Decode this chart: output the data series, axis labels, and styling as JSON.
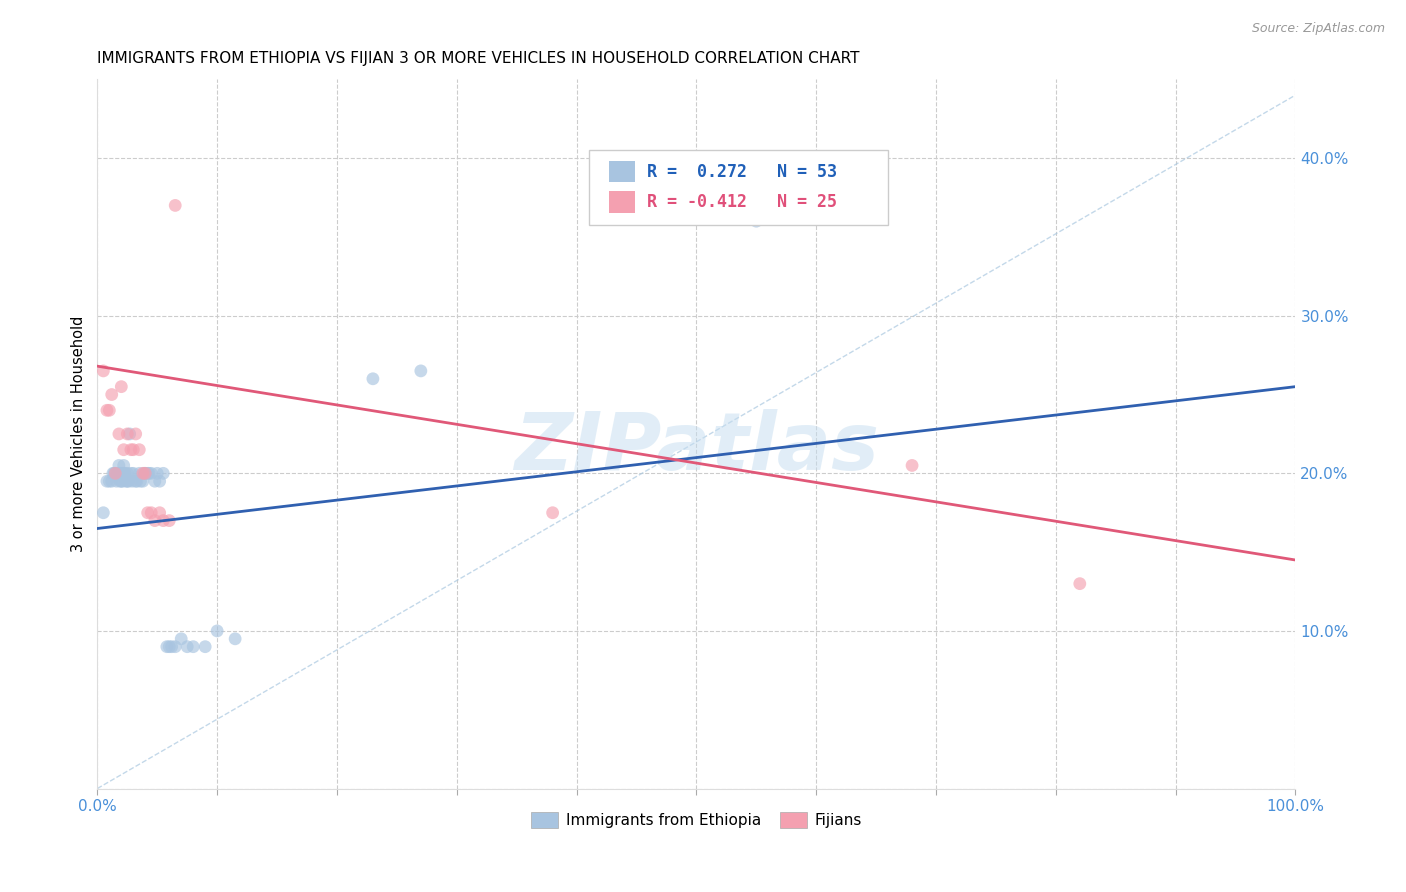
{
  "title": "IMMIGRANTS FROM ETHIOPIA VS FIJIAN 3 OR MORE VEHICLES IN HOUSEHOLD CORRELATION CHART",
  "source": "Source: ZipAtlas.com",
  "ylabel": "3 or more Vehicles in Household",
  "xlim": [
    0,
    1.0
  ],
  "ylim": [
    0,
    0.45
  ],
  "xticks": [
    0.0,
    0.1,
    0.2,
    0.3,
    0.4,
    0.5,
    0.6,
    0.7,
    0.8,
    0.9,
    1.0
  ],
  "xticklabels": [
    "0.0%",
    "",
    "",
    "",
    "",
    "",
    "",
    "",
    "",
    "",
    "100.0%"
  ],
  "yticks": [
    0.0,
    0.1,
    0.2,
    0.3,
    0.4
  ],
  "yticklabels": [
    "",
    "10.0%",
    "20.0%",
    "30.0%",
    "40.0%"
  ],
  "legend_label1": "Immigrants from Ethiopia",
  "legend_label2": "Fijians",
  "blue_color": "#a8c4e0",
  "pink_color": "#f4a0b0",
  "blue_line_color": "#3060b0",
  "pink_line_color": "#e05878",
  "dashed_line_color": "#aac8e0",
  "watermark": "ZIPatlas",
  "title_fontsize": 11,
  "scatter_alpha": 0.65,
  "scatter_size": 85,
  "blue_points_x": [
    0.005,
    0.008,
    0.01,
    0.012,
    0.013,
    0.014,
    0.015,
    0.016,
    0.017,
    0.018,
    0.018,
    0.019,
    0.02,
    0.02,
    0.021,
    0.022,
    0.022,
    0.023,
    0.024,
    0.025,
    0.025,
    0.026,
    0.027,
    0.028,
    0.029,
    0.03,
    0.032,
    0.033,
    0.035,
    0.036,
    0.038,
    0.039,
    0.04,
    0.042,
    0.043,
    0.045,
    0.048,
    0.05,
    0.052,
    0.055,
    0.058,
    0.06,
    0.062,
    0.065,
    0.07,
    0.075,
    0.08,
    0.09,
    0.1,
    0.115,
    0.23,
    0.27,
    0.55
  ],
  "blue_points_y": [
    0.175,
    0.195,
    0.195,
    0.195,
    0.2,
    0.2,
    0.2,
    0.195,
    0.2,
    0.2,
    0.205,
    0.195,
    0.195,
    0.2,
    0.195,
    0.2,
    0.205,
    0.2,
    0.195,
    0.195,
    0.2,
    0.195,
    0.225,
    0.2,
    0.195,
    0.2,
    0.195,
    0.195,
    0.2,
    0.195,
    0.195,
    0.2,
    0.2,
    0.2,
    0.2,
    0.2,
    0.195,
    0.2,
    0.195,
    0.2,
    0.09,
    0.09,
    0.09,
    0.09,
    0.095,
    0.09,
    0.09,
    0.09,
    0.1,
    0.095,
    0.26,
    0.265,
    0.36
  ],
  "pink_points_x": [
    0.005,
    0.008,
    0.01,
    0.012,
    0.015,
    0.018,
    0.02,
    0.022,
    0.025,
    0.028,
    0.03,
    0.032,
    0.035,
    0.038,
    0.04,
    0.042,
    0.045,
    0.048,
    0.052,
    0.055,
    0.06,
    0.065,
    0.38,
    0.68,
    0.82
  ],
  "pink_points_y": [
    0.265,
    0.24,
    0.24,
    0.25,
    0.2,
    0.225,
    0.255,
    0.215,
    0.225,
    0.215,
    0.215,
    0.225,
    0.215,
    0.2,
    0.2,
    0.175,
    0.175,
    0.17,
    0.175,
    0.17,
    0.17,
    0.37,
    0.175,
    0.205,
    0.13
  ],
  "blue_trendline_x": [
    0.0,
    1.0
  ],
  "blue_trendline_y": [
    0.165,
    0.255
  ],
  "pink_trendline_x": [
    0.0,
    1.0
  ],
  "pink_trendline_y": [
    0.268,
    0.145
  ],
  "dashed_line_x": [
    0.0,
    1.0
  ],
  "dashed_line_y": [
    0.0,
    0.44
  ]
}
